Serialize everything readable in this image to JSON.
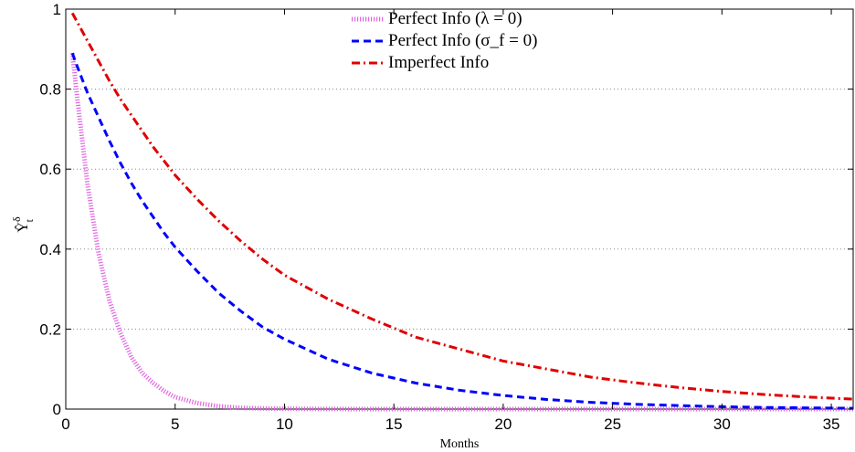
{
  "chart_data": {
    "type": "line",
    "title": "",
    "xlabel": "Months",
    "ylabel": "Ŷ",
    "ylabel_superscript": "δ",
    "ylabel_subscript": "t",
    "xlim": [
      0,
      36
    ],
    "ylim": [
      0,
      1
    ],
    "xticks": [
      0,
      5,
      10,
      15,
      20,
      25,
      30,
      35
    ],
    "yticks": [
      0,
      0.2,
      0.4,
      0.6,
      0.8,
      1
    ],
    "ytick_labels": [
      "0",
      "0.2",
      "0.4",
      "0.6",
      "0.8",
      "1"
    ],
    "grid": "horizontal-dotted",
    "legend_position": "top-center",
    "x": [
      0.3,
      0.5,
      1,
      1.5,
      2,
      2.5,
      3,
      3.5,
      4,
      4.5,
      5,
      6,
      7,
      8,
      9,
      10,
      12,
      14,
      16,
      18,
      20,
      22,
      24,
      26,
      28,
      30,
      32,
      34,
      36
    ],
    "series": [
      {
        "name": "Perfect Info (λ = 0)",
        "color": "#e066e0",
        "style": "dotted-thick",
        "values": [
          0.89,
          0.79,
          0.56,
          0.39,
          0.27,
          0.19,
          0.13,
          0.09,
          0.065,
          0.045,
          0.03,
          0.015,
          0.007,
          0.003,
          0.0015,
          0.001,
          0.0003,
          0.0001,
          0,
          0,
          0,
          0,
          0,
          0,
          0,
          0,
          0,
          0,
          0
        ]
      },
      {
        "name": "Perfect Info (σ_f = 0)",
        "color": "#0000ff",
        "style": "dashed",
        "values": [
          0.89,
          0.86,
          0.79,
          0.73,
          0.67,
          0.615,
          0.565,
          0.52,
          0.48,
          0.44,
          0.405,
          0.345,
          0.29,
          0.245,
          0.205,
          0.175,
          0.125,
          0.09,
          0.065,
          0.047,
          0.034,
          0.024,
          0.017,
          0.012,
          0.009,
          0.006,
          0.004,
          0.003,
          0.002
        ]
      },
      {
        "name": "Imperfect Info",
        "color": "#e00000",
        "style": "dashdot",
        "values": [
          0.99,
          0.97,
          0.92,
          0.87,
          0.82,
          0.775,
          0.735,
          0.695,
          0.655,
          0.62,
          0.585,
          0.525,
          0.47,
          0.42,
          0.375,
          0.335,
          0.275,
          0.225,
          0.18,
          0.15,
          0.12,
          0.1,
          0.08,
          0.066,
          0.054,
          0.044,
          0.036,
          0.03,
          0.025
        ]
      }
    ],
    "legend": [
      {
        "text": "Perfect Info (λ = 0)"
      },
      {
        "text": "Perfect Info (σ_f = 0)"
      },
      {
        "text": "Imperfect Info"
      }
    ]
  }
}
